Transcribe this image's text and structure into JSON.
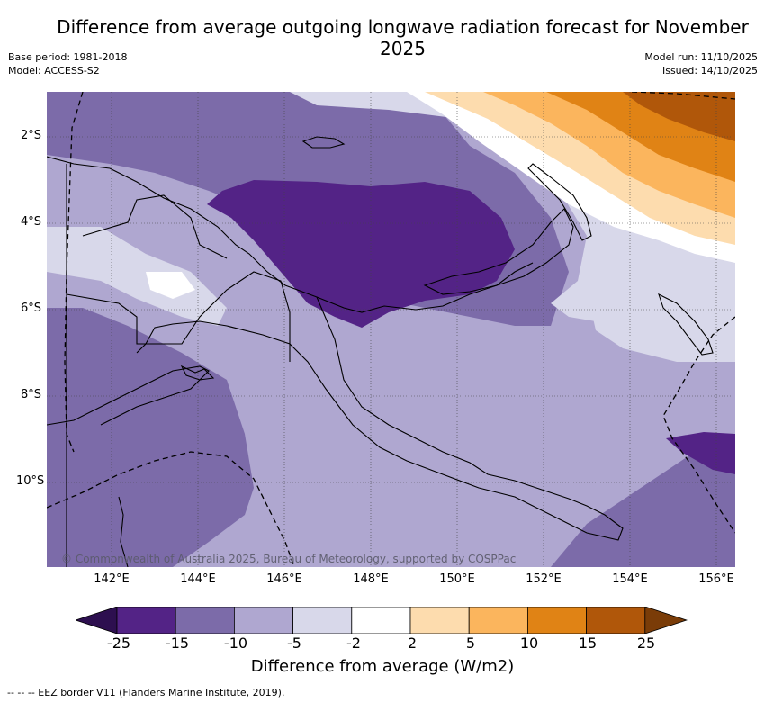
{
  "title": "Difference from average outgoing longwave radiation forecast for November 2025",
  "header_left": {
    "base_period": "Base period: 1981-2018",
    "model": "Model: ACCESS-S2"
  },
  "header_right": {
    "model_run": "Model run: 11/10/2025",
    "issued": "Issued: 14/10/2025"
  },
  "map": {
    "x_ticks": [
      "142°E",
      "144°E",
      "146°E",
      "148°E",
      "150°E",
      "152°E",
      "154°E",
      "156°E"
    ],
    "y_ticks": [
      "2°S",
      "4°S",
      "6°S",
      "8°S",
      "10°S"
    ],
    "copyright": "© Commonwealth of Australia 2025, Bureau of Meteorology, supported by COSPPac"
  },
  "colorbar": {
    "ticks": [
      "-25",
      "-15",
      "-10",
      "-5",
      "-2",
      "2",
      "5",
      "10",
      "15",
      "25"
    ],
    "colors": [
      "#532386",
      "#7c6ba9",
      "#afa7d0",
      "#d8d8ea",
      "#ffffff",
      "#fddcae",
      "#fbb55d",
      "#e08315",
      "#b0570a"
    ],
    "under_color": "#2d0f4f",
    "over_color": "#7a3c08",
    "label": "Difference from average (W/m2)"
  },
  "footnote": "-- -- -- EEZ border V11 (Flanders Marine Institute, 2019)."
}
